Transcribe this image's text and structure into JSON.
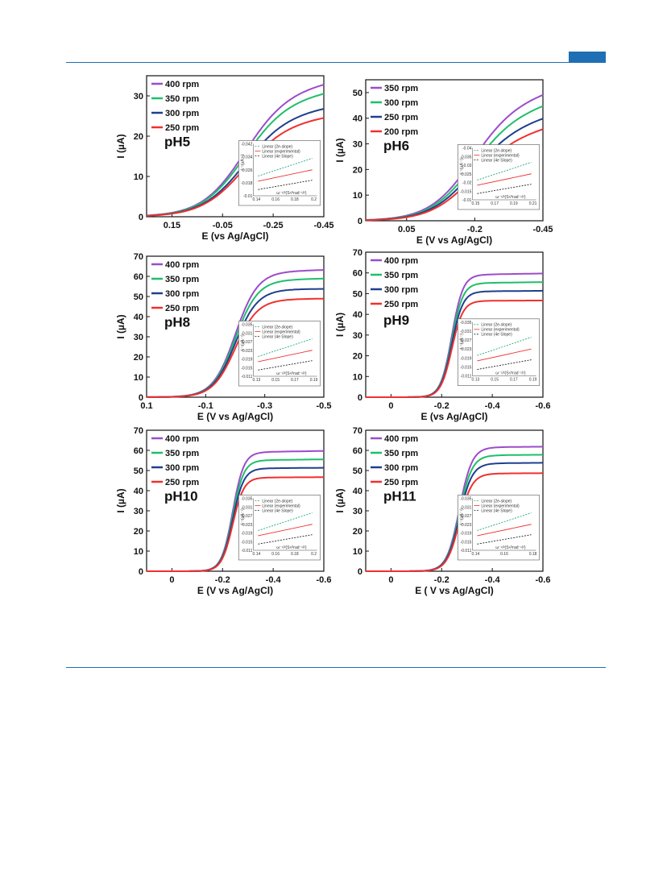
{
  "page": {
    "accent": "#1f6fb5"
  },
  "chart_data": [
    {
      "type": "line",
      "label": "pH5",
      "xlabel": "E (vs Ag/AgCl)",
      "ylabel": "I (µA)",
      "xlim": [
        0.25,
        -0.45
      ],
      "ylim": [
        0,
        35
      ],
      "xticks": [
        0.15,
        -0.05,
        -0.25,
        -0.45
      ],
      "yticks": [
        0,
        10,
        20,
        30
      ],
      "E0": -0.13,
      "width": 0.085,
      "series": [
        {
          "name": "400 rpm",
          "color": "#9b4dca",
          "plateau": 30.5,
          "slope": 9.5
        },
        {
          "name": "350 rpm",
          "color": "#1fbf6a",
          "plateau": 28.5,
          "slope": 8.5
        },
        {
          "name": "300 rpm",
          "color": "#1f3f8f",
          "plateau": 25.0,
          "slope": 7.5
        },
        {
          "name": "250 rpm",
          "color": "#f03030",
          "plateau": 23.0,
          "slope": 6.5
        }
      ],
      "inset": {
        "legend": [
          "Linear (2e-slope)",
          "Linear (experimental)",
          "Linear (4e Slope)"
        ],
        "ylabel": "I⁻¹(µA⁻¹)",
        "xlabel": "ω⁻¹/²(S¹/²rad⁻¹/²)",
        "xticks": [
          "0.14",
          "0.16",
          "0.18",
          "0.2"
        ],
        "yticks": [
          "-0.042",
          "-0.034",
          "-0.026",
          "-0.018",
          "-0.01"
        ]
      }
    },
    {
      "type": "line",
      "label": "pH6",
      "xlabel": "E (V vs Ag/AgCl)",
      "ylabel": "I (µA)",
      "xlim": [
        0.2,
        -0.45
      ],
      "ylim": [
        0,
        55
      ],
      "xticks": [
        0.05,
        -0.2,
        -0.45
      ],
      "yticks": [
        0,
        10,
        20,
        30,
        40,
        50
      ],
      "E0": -0.18,
      "width": 0.08,
      "series": [
        {
          "name": "350 rpm",
          "color": "#9b4dca",
          "plateau": 44.0,
          "slope": 25.0
        },
        {
          "name": "300 rpm",
          "color": "#1fbf6a",
          "plateau": 39.5,
          "slope": 25.0
        },
        {
          "name": "250 rpm",
          "color": "#1f3f8f",
          "plateau": 35.0,
          "slope": 23.0
        },
        {
          "name": "200 rpm",
          "color": "#f03030",
          "plateau": 31.0,
          "slope": 22.0
        }
      ],
      "inset": {
        "legend": [
          "Linear (2e-slope)",
          "Linear (experimental)",
          "Linear (4e Slope)"
        ],
        "ylabel": "I⁻¹(µA⁻¹)",
        "xlabel": "ω⁻¹/²(S¹/²rad⁻¹/²)",
        "xticks": [
          "0.15",
          "0.17",
          "0.19",
          "0.21"
        ],
        "yticks": [
          "-0.04",
          "-0.035",
          "-0.03",
          "-0.025",
          "-0.02",
          "-0.015",
          "-0.01"
        ]
      }
    },
    {
      "type": "line",
      "label": "pH8",
      "xlabel": "E (V vs Ag/AgCl)",
      "ylabel": "I (µA)",
      "xlim": [
        0.1,
        -0.5
      ],
      "ylim": [
        0,
        70
      ],
      "xticks": [
        0.1,
        -0.1,
        -0.3,
        -0.5
      ],
      "yticks": [
        0,
        10,
        20,
        30,
        40,
        50,
        60,
        70
      ],
      "E0": -0.2,
      "width": 0.038,
      "series": [
        {
          "name": "400 rpm",
          "color": "#9b4dca",
          "plateau": 62.0,
          "slope": 4.0
        },
        {
          "name": "350 rpm",
          "color": "#1fbf6a",
          "plateau": 58.0,
          "slope": 3.0
        },
        {
          "name": "300 rpm",
          "color": "#1f3f8f",
          "plateau": 53.5,
          "slope": 1.0
        },
        {
          "name": "250 rpm",
          "color": "#f03030",
          "plateau": 48.5,
          "slope": 1.5
        }
      ],
      "inset": {
        "legend": [
          "Linear (2e-slope)",
          "Linear (experimental)",
          "Linear (4e Slope)"
        ],
        "ylabel": "I⁻¹(µA⁻¹)",
        "xlabel": "ω⁻¹/²(S¹/²rad⁻¹/²)",
        "xticks": [
          "0.13",
          "0.15",
          "0.17",
          "0.19"
        ],
        "yticks": [
          "-0.035",
          "-0.031",
          "-0.027",
          "-0.023",
          "-0.019",
          "-0.015",
          "-0.011"
        ]
      }
    },
    {
      "type": "line",
      "label": "pH9",
      "xlabel": "E (vs Ag/AgCl)",
      "ylabel": "I (µA)",
      "xlim": [
        0.1,
        -0.6
      ],
      "ylim": [
        0,
        70
      ],
      "xticks": [
        0,
        -0.2,
        -0.4,
        -0.6
      ],
      "yticks": [
        0,
        10,
        20,
        30,
        40,
        50,
        60,
        70
      ],
      "E0": -0.24,
      "width": 0.022,
      "series": [
        {
          "name": "400 rpm",
          "color": "#9b4dca",
          "plateau": 59.0,
          "slope": 2.0
        },
        {
          "name": "350 rpm",
          "color": "#1fbf6a",
          "plateau": 55.0,
          "slope": 1.5
        },
        {
          "name": "300 rpm",
          "color": "#1f3f8f",
          "plateau": 51.0,
          "slope": 1.0
        },
        {
          "name": "250 rpm",
          "color": "#f03030",
          "plateau": 46.5,
          "slope": 0.5
        }
      ],
      "inset": {
        "legend": [
          "Linear (2e-slope)",
          "Linear (experimental)",
          "Linear (4e Slope)"
        ],
        "ylabel": "I⁻¹(µA⁻¹)",
        "xlabel": "ω⁻¹/²(S¹/²rad⁻¹/²)",
        "xticks": [
          "0.13",
          "0.15",
          "0.17",
          "0.19"
        ],
        "yticks": [
          "-0.035",
          "-0.031",
          "-0.027",
          "-0.023",
          "-0.019",
          "-0.015",
          "-0.011"
        ]
      }
    },
    {
      "type": "line",
      "label": "pH10",
      "xlabel": "E (V vs Ag/AgCl)",
      "ylabel": "I (µA)",
      "xlim": [
        0.1,
        -0.6
      ],
      "ylim": [
        0,
        70
      ],
      "xticks": [
        0,
        -0.2,
        -0.4,
        -0.6
      ],
      "yticks": [
        0,
        10,
        20,
        30,
        40,
        50,
        60,
        70
      ],
      "E0": -0.24,
      "width": 0.022,
      "series": [
        {
          "name": "400 rpm",
          "color": "#9b4dca",
          "plateau": 59.0,
          "slope": 2.0
        },
        {
          "name": "350 rpm",
          "color": "#1fbf6a",
          "plateau": 55.0,
          "slope": 1.5
        },
        {
          "name": "300 rpm",
          "color": "#1f3f8f",
          "plateau": 51.0,
          "slope": 1.0
        },
        {
          "name": "250 rpm",
          "color": "#f03030",
          "plateau": 46.5,
          "slope": 0.5
        }
      ],
      "inset": {
        "legend": [
          "Linear (2e-slope)",
          "Linear (experimental)",
          "Linear (4e Slope)"
        ],
        "ylabel": "I⁻¹(µA⁻¹)",
        "xlabel": "ω⁻¹/²(S¹/²rad⁻¹/²)",
        "xticks": [
          "0.14",
          "0.16",
          "0.18",
          "0.2"
        ],
        "yticks": [
          "-0.035",
          "-0.031",
          "-0.027",
          "-0.023",
          "-0.019",
          "-0.015",
          "-0.011"
        ]
      }
    },
    {
      "type": "line",
      "label": "pH11",
      "xlabel": "E ( V vs Ag/AgCl)",
      "ylabel": "I (µA)",
      "xlim": [
        0.1,
        -0.6
      ],
      "ylim": [
        0,
        70
      ],
      "xticks": [
        0,
        -0.2,
        -0.4,
        -0.6
      ],
      "yticks": [
        0,
        10,
        20,
        30,
        40,
        50,
        60,
        70
      ],
      "E0": -0.27,
      "width": 0.025,
      "series": [
        {
          "name": "400 rpm",
          "color": "#9b4dca",
          "plateau": 61.5,
          "slope": 1.0
        },
        {
          "name": "350 rpm",
          "color": "#1fbf6a",
          "plateau": 57.5,
          "slope": 1.0
        },
        {
          "name": "300 rpm",
          "color": "#1f3f8f",
          "plateau": 53.5,
          "slope": 1.0
        },
        {
          "name": "250 rpm",
          "color": "#f03030",
          "plateau": 48.5,
          "slope": 0.5
        }
      ],
      "inset": {
        "legend": [
          "Linear (2e-slope)",
          "Linear (experimental)",
          "Linear (4e Slope)"
        ],
        "ylabel": "I⁻¹(µA⁻¹)",
        "xlabel": "ω⁻¹/²(S¹/²rad⁻¹/²)",
        "xticks": [
          "0.14",
          "0.16",
          "0.18"
        ],
        "yticks": [
          "-0.035",
          "-0.031",
          "-0.027",
          "-0.023",
          "-0.019",
          "-0.015",
          "-0.011"
        ]
      }
    }
  ]
}
